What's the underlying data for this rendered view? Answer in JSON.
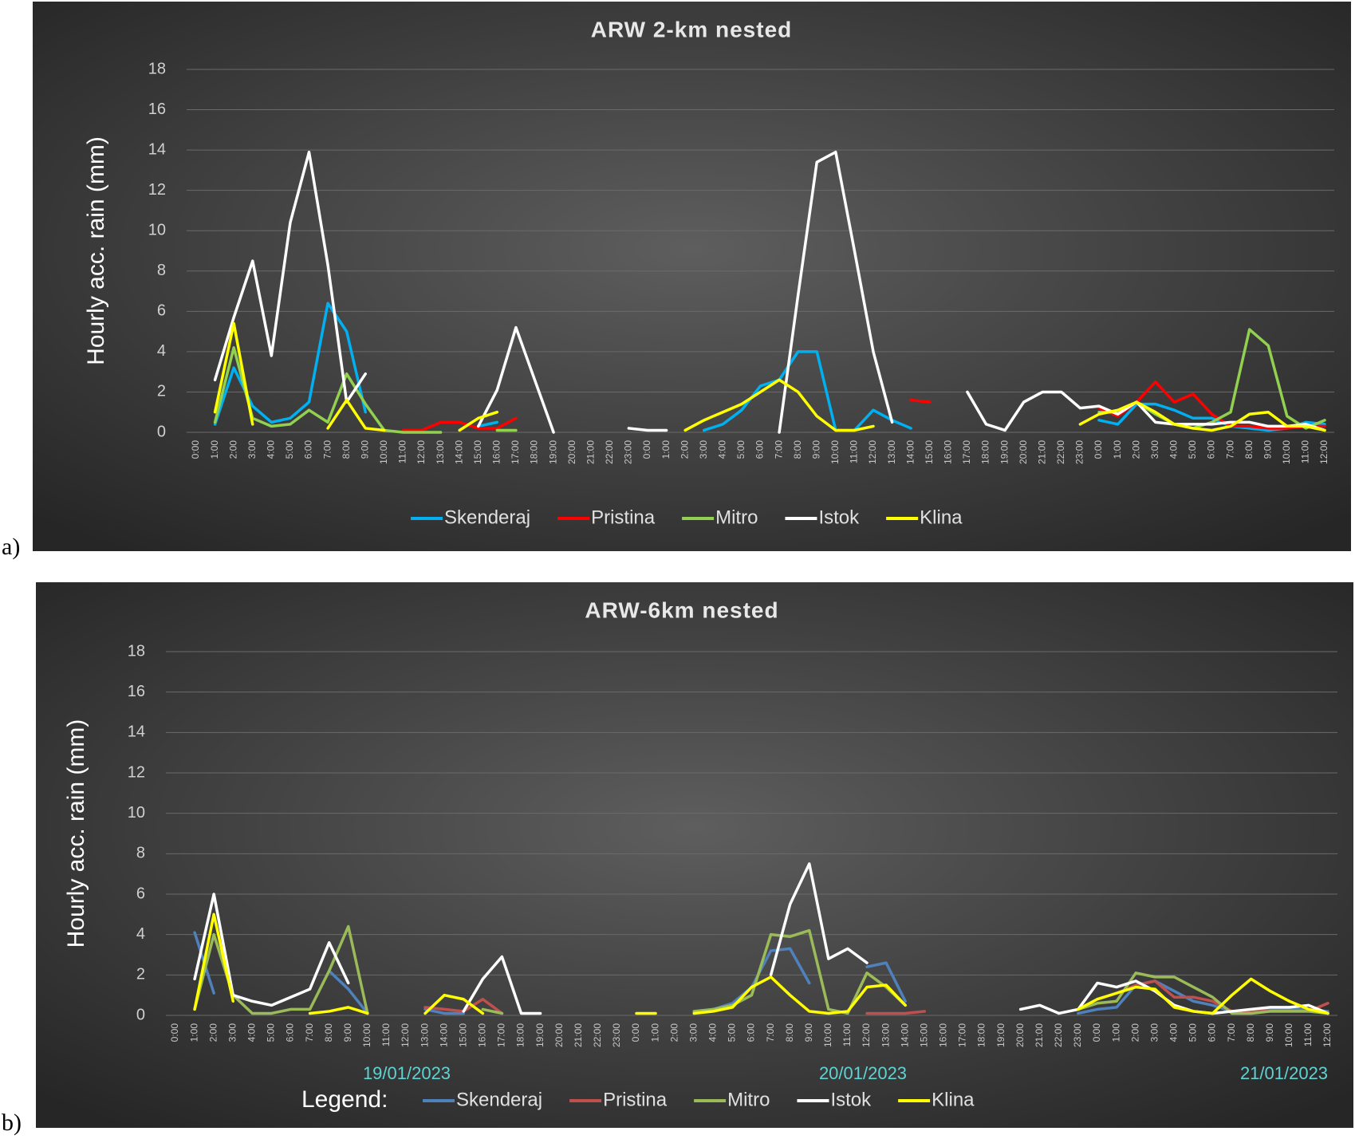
{
  "panel_labels": [
    "a)",
    "b)"
  ],
  "chart_data": [
    {
      "type": "line",
      "title": "ARW 2-km nested",
      "y_label": "Hourly acc. rain (mm)",
      "categories": [
        "0:00",
        "1:00",
        "2:00",
        "3:00",
        "4:00",
        "5:00",
        "6:00",
        "7:00",
        "8:00",
        "9:00",
        "10:00",
        "11:00",
        "12:00",
        "13:00",
        "14:00",
        "15:00",
        "16:00",
        "17:00",
        "18:00",
        "19:00",
        "20:00",
        "21:00",
        "22:00",
        "23:00",
        "0:00",
        "1:00",
        "2:00",
        "3:00",
        "4:00",
        "5:00",
        "6:00",
        "7:00",
        "8:00",
        "9:00",
        "10:00",
        "11:00",
        "12:00",
        "13:00",
        "14:00",
        "15:00",
        "16:00",
        "17:00",
        "18:00",
        "19:00",
        "20:00",
        "21:00",
        "22:00",
        "23:00",
        "0:00",
        "1:00",
        "2:00",
        "3:00",
        "4:00",
        "5:00",
        "6:00",
        "7:00",
        "8:00",
        "9:00",
        "10:00",
        "11:00",
        "12:00"
      ],
      "ylim": [
        0,
        18
      ],
      "yticks": [
        0,
        2,
        4,
        6,
        8,
        10,
        12,
        14,
        16,
        18
      ],
      "grid": true,
      "legend": "bottom",
      "series": [
        {
          "name": "Skenderaj",
          "color": "#00b0f0",
          "values": [
            null,
            0.4,
            3.2,
            1.3,
            0.5,
            0.7,
            1.5,
            6.4,
            5,
            1,
            null,
            null,
            null,
            null,
            null,
            0.3,
            0.5,
            null,
            null,
            null,
            null,
            null,
            null,
            null,
            null,
            null,
            null,
            0.1,
            0.4,
            1.1,
            2.3,
            2.6,
            4,
            4,
            0.1,
            0.1,
            1.1,
            0.6,
            0.2,
            null,
            null,
            null,
            null,
            null,
            null,
            null,
            null,
            null,
            0.6,
            0.4,
            1.4,
            1.4,
            1.1,
            0.7,
            0.7,
            0.3,
            0.2,
            0.1,
            0.2,
            0.5,
            0.4
          ]
        },
        {
          "name": "Pristina",
          "color": "#ff0000",
          "values": [
            null,
            null,
            null,
            null,
            null,
            null,
            null,
            null,
            null,
            null,
            null,
            0.1,
            0.1,
            0.5,
            0.5,
            0.2,
            0.2,
            0.7,
            null,
            null,
            null,
            null,
            null,
            null,
            null,
            null,
            null,
            null,
            null,
            null,
            null,
            null,
            null,
            null,
            null,
            null,
            null,
            null,
            1.6,
            1.5,
            null,
            null,
            null,
            null,
            null,
            null,
            null,
            null,
            1.2,
            0.8,
            1.5,
            2.5,
            1.5,
            1.9,
            0.9,
            0.3,
            0.3,
            0.2,
            0.2,
            0.3,
            0.3
          ]
        },
        {
          "name": "Mitro",
          "color": "#92d050",
          "values": [
            null,
            0.5,
            4.2,
            0.7,
            0.3,
            0.4,
            1.1,
            0.5,
            2.9,
            1.4,
            0.1,
            0,
            0,
            0,
            null,
            null,
            0.1,
            0.1,
            null,
            null,
            null,
            null,
            null,
            null,
            null,
            null,
            null,
            null,
            null,
            null,
            null,
            null,
            null,
            null,
            null,
            null,
            null,
            null,
            null,
            null,
            null,
            null,
            null,
            null,
            null,
            null,
            null,
            null,
            1.0,
            1.0,
            1.5,
            0.9,
            0.4,
            0.2,
            0.5,
            1.0,
            5.1,
            4.3,
            0.8,
            0.2,
            0.6
          ]
        },
        {
          "name": "Istok",
          "color": "#ffffff",
          "values": [
            null,
            2.6,
            5.7,
            8.5,
            3.8,
            10.4,
            13.9,
            8.3,
            1.5,
            2.9,
            null,
            null,
            null,
            null,
            null,
            0.3,
            2.1,
            5.2,
            2.6,
            0,
            null,
            null,
            null,
            0.2,
            0.1,
            0.1,
            null,
            null,
            null,
            null,
            null,
            0,
            6.8,
            13.4,
            13.9,
            9,
            4,
            0.5,
            null,
            null,
            null,
            2.0,
            0.4,
            0.1,
            1.5,
            2,
            2,
            1.2,
            1.3,
            0.9,
            1.5,
            0.5,
            0.4,
            0.4,
            0.4,
            0.5,
            0.5,
            0.3,
            0.3,
            0.4,
            0.1
          ]
        },
        {
          "name": "Klina",
          "color": "#ffff00",
          "values": [
            null,
            1.0,
            5.4,
            0.4,
            null,
            null,
            null,
            0.2,
            1.6,
            0.2,
            0.1,
            null,
            null,
            null,
            0.1,
            0.7,
            1.0,
            null,
            null,
            null,
            null,
            null,
            null,
            null,
            null,
            null,
            0.1,
            0.6,
            1.0,
            1.4,
            2.0,
            2.6,
            2.0,
            0.8,
            0.1,
            0.1,
            0.3,
            null,
            null,
            null,
            null,
            null,
            null,
            null,
            null,
            null,
            null,
            0.4,
            0.9,
            1.1,
            1.5,
            1.0,
            0.4,
            0.2,
            0.1,
            0.3,
            0.9,
            1.0,
            0.3,
            0.3,
            0.1
          ]
        }
      ]
    },
    {
      "type": "line",
      "title": "ARW-6km nested",
      "y_label": "Hourly acc. rain (mm)",
      "categories": [
        "0:00",
        "1:00",
        "2:00",
        "3:00",
        "4:00",
        "5:00",
        "6:00",
        "7:00",
        "8:00",
        "9:00",
        "10:00",
        "11:00",
        "12:00",
        "13:00",
        "14:00",
        "15:00",
        "16:00",
        "17:00",
        "18:00",
        "19:00",
        "20:00",
        "21:00",
        "22:00",
        "23:00",
        "0:00",
        "1:00",
        "2:00",
        "3:00",
        "4:00",
        "5:00",
        "6:00",
        "7:00",
        "8:00",
        "9:00",
        "10:00",
        "11:00",
        "12:00",
        "13:00",
        "14:00",
        "15:00",
        "16:00",
        "17:00",
        "18:00",
        "19:00",
        "20:00",
        "21:00",
        "22:00",
        "23:00",
        "0:00",
        "1:00",
        "2:00",
        "3:00",
        "4:00",
        "5:00",
        "6:00",
        "7:00",
        "8:00",
        "9:00",
        "10:00",
        "11:00",
        "12:00"
      ],
      "ylim": [
        0,
        18
      ],
      "yticks": [
        0,
        2,
        4,
        6,
        8,
        10,
        12,
        14,
        16,
        18
      ],
      "grid": true,
      "legend": "bottom",
      "legend_title": "Legend:",
      "date_labels": [
        "19/01/2023",
        "20/01/2023",
        "21/01/2023"
      ],
      "series": [
        {
          "name": "Skenderaj",
          "color": "#4f81bd",
          "values": [
            null,
            4.1,
            1.1,
            null,
            null,
            null,
            null,
            null,
            2.2,
            1.3,
            0.1,
            null,
            null,
            0.3,
            0.1,
            0.1,
            null,
            null,
            null,
            null,
            null,
            null,
            null,
            null,
            null,
            null,
            null,
            0.2,
            0.3,
            0.6,
            1.4,
            3.2,
            3.3,
            1.6,
            null,
            null,
            2.4,
            2.6,
            0.7,
            null,
            null,
            null,
            null,
            null,
            null,
            null,
            null,
            0.1,
            0.3,
            0.4,
            1.5,
            1.7,
            1.2,
            0.7,
            0.5,
            0.2,
            0.2,
            0.3,
            0.3,
            0.3,
            0.2
          ]
        },
        {
          "name": "Pristina",
          "color": "#c0504d",
          "values": [
            null,
            null,
            null,
            null,
            null,
            null,
            null,
            null,
            null,
            null,
            null,
            null,
            null,
            0.4,
            0.3,
            0.2,
            0.8,
            0.1,
            null,
            null,
            null,
            null,
            null,
            null,
            null,
            null,
            null,
            null,
            null,
            null,
            null,
            null,
            null,
            null,
            null,
            null,
            0.1,
            0.1,
            0.1,
            0.2,
            null,
            null,
            null,
            null,
            null,
            null,
            null,
            null,
            0.8,
            1.1,
            1.5,
            1.7,
            0.9,
            0.9,
            0.7,
            0.2,
            0.2,
            0.2,
            0.2,
            0.2,
            0.6
          ]
        },
        {
          "name": "Mitro",
          "color": "#9bbb59",
          "values": [
            null,
            0.3,
            4.0,
            1.0,
            0.1,
            0.1,
            0.3,
            0.3,
            2.2,
            4.4,
            0.1,
            null,
            null,
            null,
            null,
            null,
            0.3,
            0.1,
            null,
            null,
            null,
            null,
            null,
            null,
            null,
            null,
            null,
            0.2,
            0.3,
            0.5,
            1.0,
            4.0,
            3.9,
            4.2,
            0.3,
            0.1,
            2.1,
            1.4,
            0.5,
            null,
            null,
            null,
            null,
            null,
            null,
            null,
            null,
            0.3,
            0.6,
            0.7,
            2.1,
            1.9,
            1.9,
            1.4,
            0.9,
            0.1,
            0.1,
            0.2,
            0.2,
            0.2,
            0.1
          ]
        },
        {
          "name": "Istok",
          "color": "#ffffff",
          "values": [
            null,
            1.8,
            6.0,
            1.0,
            0.7,
            0.5,
            0.9,
            1.3,
            3.6,
            1.6,
            null,
            null,
            null,
            null,
            null,
            0.2,
            1.8,
            2.9,
            0.1,
            0.1,
            null,
            null,
            null,
            null,
            null,
            null,
            null,
            null,
            null,
            null,
            null,
            2.0,
            5.5,
            7.5,
            2.8,
            3.3,
            2.6,
            null,
            null,
            null,
            null,
            null,
            null,
            null,
            0.3,
            0.5,
            0.1,
            0.3,
            1.6,
            1.4,
            1.7,
            1.2,
            0.5,
            0.2,
            0.1,
            0.2,
            0.3,
            0.4,
            0.4,
            0.5,
            0.1
          ]
        },
        {
          "name": "Klina",
          "color": "#ffff00",
          "values": [
            null,
            0.3,
            5.0,
            0.7,
            null,
            null,
            null,
            0.1,
            0.2,
            0.4,
            0.1,
            null,
            null,
            0.1,
            1.0,
            0.8,
            0.1,
            null,
            null,
            null,
            null,
            null,
            null,
            null,
            0.1,
            0.1,
            null,
            0.1,
            0.2,
            0.4,
            1.4,
            1.9,
            1.0,
            0.2,
            0.1,
            0.2,
            1.4,
            1.5,
            0.5,
            null,
            null,
            null,
            null,
            null,
            null,
            null,
            null,
            0.3,
            0.8,
            1.1,
            1.4,
            1.3,
            0.4,
            0.2,
            0.1,
            1.0,
            1.8,
            1.2,
            0.7,
            0.3,
            0.1
          ]
        }
      ]
    }
  ]
}
